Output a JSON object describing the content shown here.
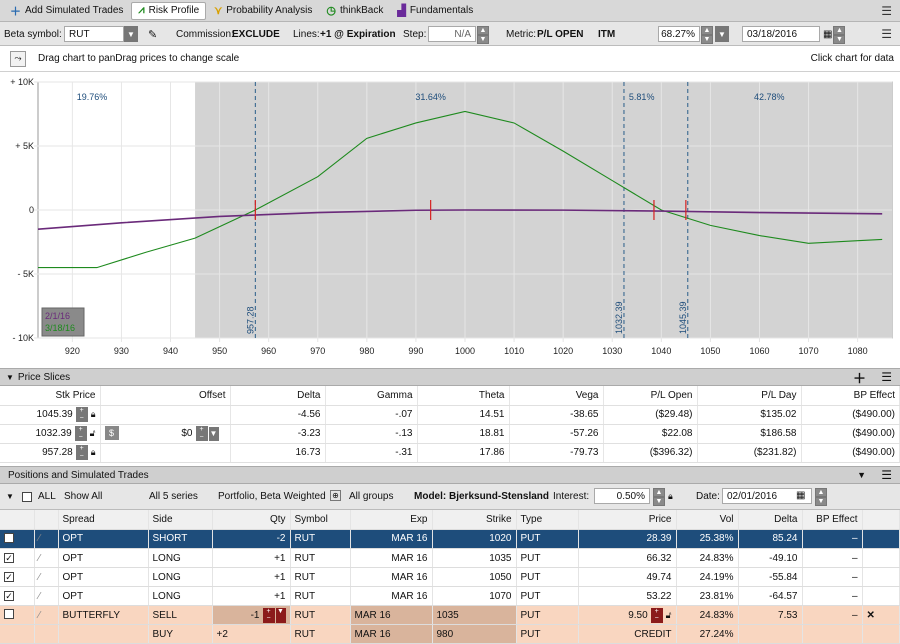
{
  "tabs": [
    {
      "label": "Add Simulated Trades",
      "icon": "plus-icon"
    },
    {
      "label": "Risk Profile",
      "icon": "risk-profile-icon"
    },
    {
      "label": "Probability Analysis",
      "icon": "probability-icon"
    },
    {
      "label": "thinkBack",
      "icon": "clock-icon"
    },
    {
      "label": "Fundamentals",
      "icon": "fundamentals-icon"
    }
  ],
  "toolbar": {
    "beta_label": "Beta symbol:",
    "beta_value": "RUT",
    "commission_label": "Commission:",
    "commission_value": "EXCLUDE",
    "lines_label": "Lines:",
    "lines_value": "+1 @ Expiration",
    "step_label": "Step:",
    "step_value": "N/A",
    "metric_label": "Metric:",
    "metric_value": "P/L OPEN",
    "itm": "ITM",
    "itm_pct": "68.27%",
    "date": "03/18/2016"
  },
  "chart_header": {
    "hint": "Drag chart to panDrag prices to change scale",
    "right_hint": "Click chart for data"
  },
  "chart_data": {
    "type": "line",
    "x_ticks": [
      920,
      930,
      940,
      950,
      960,
      970,
      980,
      990,
      1000,
      1010,
      1020,
      1030,
      1040,
      1050,
      1060,
      1070,
      1080
    ],
    "y_ticks": [
      {
        "v": 10000,
        "label": "+ 10K"
      },
      {
        "v": 5000,
        "label": "+ 5K"
      },
      {
        "v": 0,
        "label": "0"
      },
      {
        "v": -5000,
        "label": "- 5K"
      },
      {
        "v": -10000,
        "label": "- 10K"
      }
    ],
    "xlim": [
      913,
      1087
    ],
    "ylim": [
      -10000,
      10000
    ],
    "shaded_range": [
      945,
      1087
    ],
    "markers": [
      {
        "x": 957.28,
        "label": "957.28"
      },
      {
        "x": 1032.39,
        "label": "1032.39"
      },
      {
        "x": 1045.39,
        "label": "1045.39"
      }
    ],
    "pct_labels": [
      {
        "x": 924,
        "label": "19.76%"
      },
      {
        "x": 993,
        "label": "31.64%"
      },
      {
        "x": 1036,
        "label": "5.81%"
      },
      {
        "x": 1062,
        "label": "42.78%"
      }
    ],
    "red_ticks": [
      957.28,
      993,
      1038.5,
      1045
    ],
    "legend": [
      {
        "label": "2/1/16",
        "color": "#6a2a7a"
      },
      {
        "label": "3/18/16",
        "color": "#1e8a1e"
      }
    ],
    "series": [
      {
        "color": "#1e8a1e",
        "x": [
          913,
          925,
          935,
          945,
          957.28,
          970,
          980,
          990,
          1000,
          1010,
          1020,
          1030,
          1040,
          1050,
          1060,
          1070,
          1080,
          1085
        ],
        "y": [
          -4500,
          -4500,
          -3300,
          -2200,
          0,
          2600,
          5600,
          6800,
          7700,
          6800,
          4600,
          2300,
          0,
          -1200,
          -2000,
          -2600,
          -2400,
          -2300
        ]
      },
      {
        "color": "#6a2a7a",
        "x": [
          913,
          930,
          950,
          970,
          990,
          1000,
          1020,
          1040,
          1060,
          1085
        ],
        "y": [
          -1500,
          -1000,
          -500,
          -200,
          -20,
          0,
          -10,
          -80,
          -200,
          -300
        ]
      }
    ]
  },
  "price_slices": {
    "title": "Price Slices",
    "headers": [
      "Stk Price",
      "Offset",
      "Delta",
      "Gamma",
      "Theta",
      "Vega",
      "P/L Open",
      "P/L Day",
      "BP Effect"
    ],
    "rows": [
      {
        "price": "1045.39",
        "offset": "",
        "delta": "-4.56",
        "gamma": "-.07",
        "theta": "14.51",
        "vega": "-38.65",
        "pl_open": "($29.48)",
        "pl_day": "$135.02",
        "bp": "($490.00)"
      },
      {
        "price": "1032.39",
        "offset": "$0",
        "delta": "-3.23",
        "gamma": "-.13",
        "theta": "18.81",
        "vega": "-57.26",
        "pl_open": "$22.08",
        "pl_day": "$186.58",
        "bp": "($490.00)"
      },
      {
        "price": "957.28",
        "offset": "",
        "delta": "16.73",
        "gamma": "-.31",
        "theta": "17.86",
        "vega": "-79.73",
        "pl_open": "($396.32)",
        "pl_day": "($231.82)",
        "bp": "($490.00)"
      }
    ]
  },
  "positions": {
    "title": "Positions and Simulated Trades",
    "filters": {
      "all": "ALL",
      "show": "Show All",
      "series": "All 5 series",
      "portfolio": "Portfolio, Beta Weighted",
      "groups": "All groups",
      "model": "Model: Bjerksund-Stensland",
      "interest_label": "Interest:",
      "interest": "0.50%",
      "date_label": "Date:",
      "date": "02/01/2016"
    },
    "headers": [
      "Spread",
      "Side",
      "Qty",
      "Symbol",
      "Exp",
      "Strike",
      "Type",
      "Price",
      "Vol",
      "Delta",
      "BP Effect"
    ],
    "rows": [
      {
        "spread": "OPT",
        "side": "SHORT",
        "qty": "-2",
        "symbol": "RUT",
        "exp": "MAR 16",
        "strike": "1020",
        "type": "PUT",
        "price": "28.39",
        "vol": "25.38%",
        "delta": "85.24",
        "bp": "–"
      },
      {
        "spread": "OPT",
        "side": "LONG",
        "qty": "+1",
        "symbol": "RUT",
        "exp": "MAR 16",
        "strike": "1035",
        "type": "PUT",
        "price": "66.32",
        "vol": "24.83%",
        "delta": "-49.10",
        "bp": "–"
      },
      {
        "spread": "OPT",
        "side": "LONG",
        "qty": "+1",
        "symbol": "RUT",
        "exp": "MAR 16",
        "strike": "1050",
        "type": "PUT",
        "price": "49.74",
        "vol": "24.19%",
        "delta": "-55.84",
        "bp": "–"
      },
      {
        "spread": "OPT",
        "side": "LONG",
        "qty": "+1",
        "symbol": "RUT",
        "exp": "MAR 16",
        "strike": "1070",
        "type": "PUT",
        "price": "53.22",
        "vol": "23.81%",
        "delta": "-64.57",
        "bp": "–"
      }
    ],
    "butterfly": [
      {
        "spread": "BUTTERFLY",
        "side": "SELL",
        "qty": "-1",
        "symbol": "RUT",
        "exp": "MAR 16",
        "strike": "1035",
        "type": "PUT",
        "price": "9.50",
        "vol": "24.83%",
        "delta": "7.53",
        "bp": "–"
      },
      {
        "spread": "",
        "side": "BUY",
        "qty": "+2",
        "symbol": "RUT",
        "exp": "MAR 16",
        "strike": "980",
        "type": "PUT",
        "price": "CREDIT",
        "vol": "27.24%",
        "delta": "",
        "bp": ""
      }
    ]
  }
}
